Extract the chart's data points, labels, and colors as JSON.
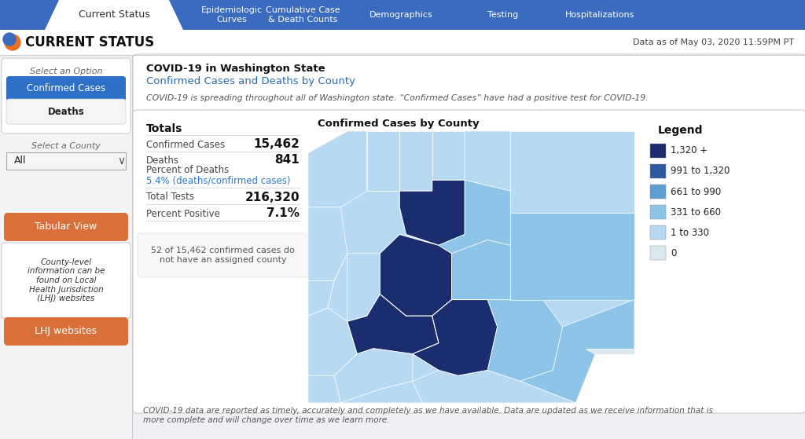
{
  "bg_color": "#eef0f3",
  "nav_bar_color": "#3a6bbf",
  "nav_items": [
    "Current Status",
    "Epidemiologic\nCurves",
    "Cumulative Case\n& Death Counts",
    "Demographics",
    "Testing",
    "Hospitalizations"
  ],
  "header_title": "CURRENT STATUS",
  "header_date": "Data as of May 03, 2020 11:59PM PT",
  "select_option_label": "Select an Option",
  "option_confirmed": "Confirmed Cases",
  "option_deaths": "Deaths",
  "select_county_label": "Select a County",
  "county_value": "All",
  "tabular_btn": "Tabular View",
  "tabular_btn_color": "#d9703a",
  "sidebar_info": "County-level\ninformation can be\nfound on Local\nHealth Jurisdiction\n(LHJ) websites",
  "lhj_btn": "LHJ websites",
  "lhj_btn_color": "#d9703a",
  "main_title": "COVID-19 in Washington State",
  "main_subtitle": "Confirmed Cases and Deaths by County",
  "main_subtitle_color": "#2b6cb0",
  "main_desc": "COVID-19 is spreading throughout all of Washington state. “Confirmed Cases” have had a positive test for COVID-19.",
  "totals_title": "Totals",
  "confirmed_label": "Confirmed Cases",
  "confirmed_value": "15,462",
  "deaths_label": "Deaths",
  "deaths_value": "841",
  "pct_deaths_label": "Percent of Deaths",
  "pct_deaths_value": "5.4% (deaths/confirmed cases)",
  "pct_deaths_color": "#2b7bd4",
  "total_tests_label": "Total Tests",
  "total_tests_value": "216,320",
  "pct_positive_label": "Percent Positive",
  "pct_positive_value": "7.1%",
  "footer_note": "52 of 15,462 confirmed cases do\nnot have an assigned county",
  "map_title": "Confirmed Cases by County",
  "legend_title": "Legend",
  "legend_labels": [
    "1,320 +",
    "991 to 1,320",
    "661 to 990",
    "331 to 660",
    "1 to 330",
    "0"
  ],
  "legend_colors": [
    "#1b2d6e",
    "#2c5aa0",
    "#5b9fd4",
    "#8ec4e8",
    "#b8d9f2",
    "#dce8f0"
  ],
  "disclaimer": "COVID-19 data are reported as timely, accurately and completely as we have available. Data are updated as we receive information that is\nmore complete and will change over time as we learn more.",
  "confirmed_btn_color": "#2d70c8",
  "deaths_btn_color": "#f0f0f0"
}
